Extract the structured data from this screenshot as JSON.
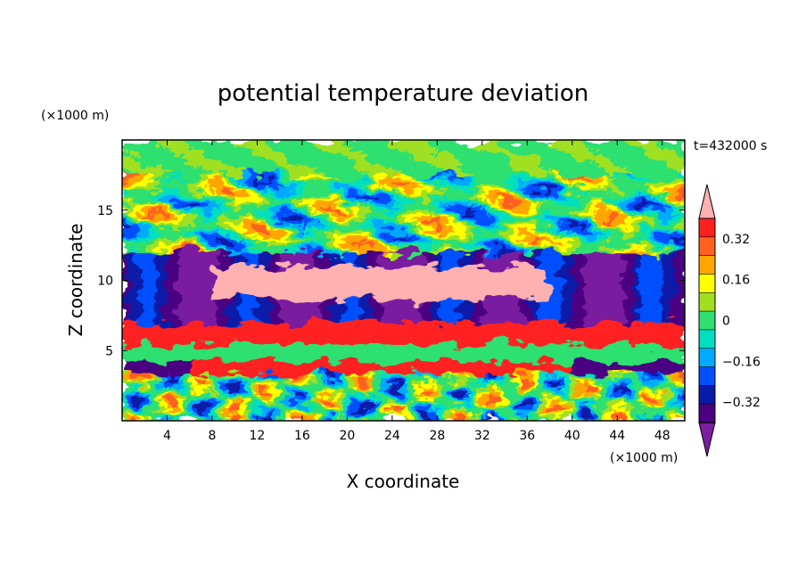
{
  "chart_data": {
    "type": "heatmap",
    "title": "potential temperature deviation",
    "time_label": "t=432000 s",
    "xlabel": "X coordinate",
    "ylabel": "Z coordinate",
    "x_unit": "(×1000 m)",
    "y_unit": "(×1000 m)",
    "xlim": [
      0,
      50
    ],
    "ylim": [
      0,
      20
    ],
    "x_ticks": [
      4,
      8,
      12,
      16,
      20,
      24,
      28,
      32,
      36,
      40,
      44,
      48
    ],
    "y_ticks": [
      5,
      10,
      15
    ],
    "colorbar": {
      "levels": [
        -0.48,
        -0.4,
        -0.32,
        -0.24,
        -0.16,
        -0.08,
        0,
        0.08,
        0.16,
        0.24,
        0.32,
        0.4,
        0.48
      ],
      "labels": [
        "0.32",
        "0.16",
        "0",
        "−0.16",
        "−0.32"
      ],
      "label_values": [
        0.32,
        0.16,
        0,
        -0.16,
        -0.32
      ],
      "colors": [
        "#7a1fa0",
        "#4b0082",
        "#0a1aa8",
        "#0050ff",
        "#00aaff",
        "#00e0c0",
        "#2fe070",
        "#a0e020",
        "#ffff00",
        "#ffa500",
        "#ff6020",
        "#ff2020",
        "#ffb0b0"
      ],
      "extend": "both"
    }
  }
}
